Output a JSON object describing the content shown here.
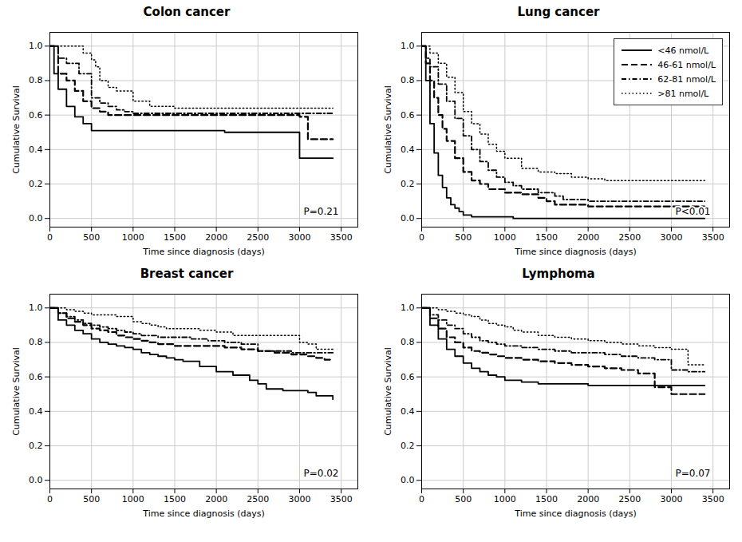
{
  "chart_data": [
    {
      "type": "line",
      "title": "Colon cancer",
      "x_label": "Time since diagnosis (days)",
      "y_label": "Cumulative Survival",
      "xlim": [
        0,
        3700
      ],
      "xticks": [
        0,
        500,
        1000,
        1500,
        2000,
        2500,
        3000,
        3500
      ],
      "ylim": [
        -0.05,
        1.08
      ],
      "yticks": [
        {
          "value": 0,
          "label": "0.0"
        },
        0.2,
        0.4,
        0.6,
        0.8,
        {
          "value": 1,
          "label": "1.0"
        }
      ],
      "grid": true,
      "annotations": [
        "P=0.21"
      ],
      "series": [
        {
          "color": "black",
          "line_style": "solid",
          "x": [
            0,
            50,
            100,
            200,
            300,
            400,
            500,
            600,
            700,
            800,
            900,
            1000,
            1200,
            1500,
            2000,
            2100,
            2200,
            2500,
            3000,
            3200,
            3400
          ],
          "values": [
            1.0,
            0.84,
            0.75,
            0.65,
            0.59,
            0.55,
            0.51,
            0.51,
            0.51,
            0.51,
            0.51,
            0.51,
            0.51,
            0.51,
            0.51,
            0.5,
            0.5,
            0.5,
            0.35,
            0.35,
            0.35
          ]
        },
        {
          "color": "black",
          "line_style": "dashed",
          "x": [
            0,
            100,
            200,
            300,
            400,
            500,
            600,
            700,
            800,
            900,
            1000,
            1100,
            1200,
            1500,
            2000,
            2500,
            2800,
            3000,
            3100,
            3200,
            3400
          ],
          "values": [
            1.0,
            0.84,
            0.8,
            0.74,
            0.68,
            0.64,
            0.62,
            0.6,
            0.6,
            0.6,
            0.6,
            0.6,
            0.6,
            0.6,
            0.6,
            0.6,
            0.6,
            0.59,
            0.46,
            0.46,
            0.46
          ]
        },
        {
          "color": "black",
          "line_style": "dashdot",
          "x": [
            0,
            100,
            200,
            350,
            500,
            600,
            700,
            800,
            900,
            1000,
            1100,
            1200,
            1500,
            1800,
            2000,
            2500,
            3000,
            3200,
            3400
          ],
          "values": [
            1.0,
            0.93,
            0.9,
            0.84,
            0.7,
            0.67,
            0.65,
            0.63,
            0.62,
            0.61,
            0.61,
            0.61,
            0.61,
            0.61,
            0.61,
            0.61,
            0.61,
            0.61,
            0.61
          ]
        },
        {
          "color": "black",
          "line_style": "dotted",
          "x": [
            0,
            100,
            200,
            300,
            400,
            500,
            550,
            600,
            700,
            800,
            1000,
            1200,
            1500,
            2000,
            2500,
            3000,
            3400
          ],
          "values": [
            1.0,
            1.0,
            1.0,
            1.0,
            0.96,
            0.92,
            0.88,
            0.8,
            0.76,
            0.74,
            0.68,
            0.65,
            0.64,
            0.64,
            0.64,
            0.64,
            0.64
          ]
        }
      ]
    },
    {
      "type": "line",
      "title": "Lung cancer",
      "x_label": "Time since diagnosis (days)",
      "y_label": "Cumulative Survival",
      "xlim": [
        0,
        3700
      ],
      "xticks": [
        0,
        500,
        1000,
        1500,
        2000,
        2500,
        3000,
        3500
      ],
      "ylim": [
        -0.05,
        1.08
      ],
      "yticks": [
        {
          "value": 0,
          "label": "0.0"
        },
        0.2,
        0.4,
        0.6,
        0.8,
        {
          "value": 1,
          "label": "1.0"
        }
      ],
      "grid": true,
      "legend": "upper right",
      "annotations": [
        "P<0.01"
      ],
      "series": [
        {
          "name": "<46 nmol/L",
          "color": "black",
          "line_style": "solid",
          "x": [
            0,
            50,
            100,
            150,
            200,
            250,
            300,
            350,
            400,
            450,
            500,
            600,
            700,
            800,
            900,
            1000,
            1100,
            1200,
            1500,
            2000,
            2500,
            3000,
            3400
          ],
          "values": [
            1.0,
            0.8,
            0.55,
            0.38,
            0.25,
            0.18,
            0.12,
            0.08,
            0.06,
            0.04,
            0.02,
            0.01,
            0.01,
            0.01,
            0.01,
            0.01,
            0.0,
            0.0,
            0.0,
            0.0,
            0.0,
            0.0,
            0.0
          ]
        },
        {
          "name": "46-61 nmol/L",
          "color": "black",
          "line_style": "dashed",
          "x": [
            0,
            50,
            100,
            150,
            200,
            250,
            300,
            400,
            500,
            600,
            700,
            800,
            1000,
            1200,
            1400,
            1500,
            1600,
            1800,
            2000,
            2200,
            2500,
            2800,
            3000,
            3400
          ],
          "values": [
            1.0,
            0.9,
            0.8,
            0.7,
            0.6,
            0.52,
            0.45,
            0.35,
            0.27,
            0.22,
            0.2,
            0.17,
            0.15,
            0.14,
            0.12,
            0.1,
            0.08,
            0.08,
            0.07,
            0.07,
            0.07,
            0.07,
            0.07,
            0.07
          ]
        },
        {
          "name": "62-81 nmol/L",
          "color": "black",
          "line_style": "dashdot",
          "x": [
            0,
            50,
            100,
            200,
            300,
            400,
            500,
            600,
            700,
            800,
            900,
            1000,
            1100,
            1200,
            1400,
            1600,
            1700,
            1800,
            2000,
            2500,
            3000,
            3200,
            3400
          ],
          "values": [
            1.0,
            0.93,
            0.88,
            0.78,
            0.68,
            0.58,
            0.48,
            0.4,
            0.33,
            0.28,
            0.24,
            0.21,
            0.19,
            0.17,
            0.15,
            0.13,
            0.11,
            0.11,
            0.1,
            0.1,
            0.1,
            0.1,
            0.1
          ]
        },
        {
          "name": ">81 nmol/L",
          "color": "black",
          "line_style": "dotted",
          "x": [
            0,
            100,
            200,
            300,
            400,
            500,
            600,
            700,
            800,
            900,
            1000,
            1200,
            1400,
            1600,
            1800,
            2000,
            2200,
            2500,
            2800,
            3000,
            3200,
            3400
          ],
          "values": [
            1.0,
            0.96,
            0.9,
            0.82,
            0.73,
            0.62,
            0.55,
            0.49,
            0.43,
            0.39,
            0.35,
            0.29,
            0.27,
            0.26,
            0.24,
            0.23,
            0.22,
            0.22,
            0.22,
            0.22,
            0.22,
            0.22
          ]
        }
      ]
    },
    {
      "type": "line",
      "title": "Breast cancer",
      "x_label": "Time since diagnosis (days)",
      "y_label": "Cumulative Survival",
      "xlim": [
        0,
        3700
      ],
      "xticks": [
        0,
        500,
        1000,
        1500,
        2000,
        2500,
        3000,
        3500
      ],
      "ylim": [
        -0.05,
        1.08
      ],
      "yticks": [
        {
          "value": 0,
          "label": "0.0"
        },
        0.2,
        0.4,
        0.6,
        0.8,
        {
          "value": 1,
          "label": "1.0"
        }
      ],
      "grid": true,
      "annotations": [
        "P=0.02"
      ],
      "series": [
        {
          "color": "black",
          "line_style": "solid",
          "x": [
            0,
            100,
            200,
            300,
            400,
            500,
            600,
            700,
            800,
            900,
            1000,
            1100,
            1200,
            1300,
            1400,
            1500,
            1600,
            1800,
            2000,
            2200,
            2400,
            2500,
            2600,
            2800,
            3000,
            3100,
            3200,
            3400
          ],
          "values": [
            1.0,
            0.93,
            0.9,
            0.87,
            0.85,
            0.82,
            0.8,
            0.79,
            0.78,
            0.77,
            0.76,
            0.74,
            0.73,
            0.72,
            0.71,
            0.7,
            0.69,
            0.66,
            0.63,
            0.61,
            0.58,
            0.56,
            0.53,
            0.52,
            0.52,
            0.51,
            0.49,
            0.47
          ]
        },
        {
          "color": "black",
          "line_style": "dashed",
          "x": [
            0,
            100,
            200,
            300,
            400,
            500,
            600,
            700,
            800,
            900,
            1000,
            1100,
            1200,
            1300,
            1500,
            1700,
            1900,
            2100,
            2300,
            2500,
            2700,
            2900,
            3100,
            3200,
            3300,
            3400
          ],
          "values": [
            1.0,
            0.97,
            0.94,
            0.92,
            0.9,
            0.88,
            0.87,
            0.86,
            0.84,
            0.83,
            0.82,
            0.81,
            0.8,
            0.79,
            0.78,
            0.78,
            0.78,
            0.77,
            0.76,
            0.75,
            0.74,
            0.73,
            0.72,
            0.71,
            0.7,
            0.7
          ]
        },
        {
          "color": "black",
          "line_style": "dashdot",
          "x": [
            0,
            100,
            200,
            300,
            400,
            500,
            600,
            700,
            800,
            900,
            1000,
            1100,
            1200,
            1300,
            1500,
            1700,
            1900,
            2100,
            2300,
            2500,
            2700,
            2900,
            3100,
            3200,
            3300,
            3400
          ],
          "values": [
            1.0,
            0.97,
            0.95,
            0.93,
            0.91,
            0.9,
            0.89,
            0.88,
            0.87,
            0.86,
            0.85,
            0.84,
            0.84,
            0.83,
            0.83,
            0.82,
            0.81,
            0.8,
            0.79,
            0.75,
            0.75,
            0.74,
            0.74,
            0.74,
            0.74,
            0.74
          ]
        },
        {
          "color": "black",
          "line_style": "dotted",
          "x": [
            0,
            100,
            200,
            300,
            400,
            500,
            600,
            700,
            800,
            900,
            1000,
            1100,
            1200,
            1300,
            1400,
            1600,
            1800,
            2000,
            2200,
            2400,
            2600,
            2700,
            2800,
            3000,
            3100,
            3200,
            3400
          ],
          "values": [
            1.0,
            1.0,
            0.99,
            0.98,
            0.97,
            0.96,
            0.96,
            0.96,
            0.95,
            0.95,
            0.92,
            0.91,
            0.9,
            0.89,
            0.88,
            0.88,
            0.87,
            0.86,
            0.84,
            0.84,
            0.84,
            0.84,
            0.84,
            0.8,
            0.79,
            0.76,
            0.75
          ]
        }
      ]
    },
    {
      "type": "line",
      "title": "Lymphoma",
      "x_label": "Time since diagnosis (days)",
      "y_label": "Cumulative Survival",
      "xlim": [
        0,
        3700
      ],
      "xticks": [
        0,
        500,
        1000,
        1500,
        2000,
        2500,
        3000,
        3500
      ],
      "ylim": [
        -0.05,
        1.08
      ],
      "yticks": [
        {
          "value": 0,
          "label": "0.0"
        },
        0.2,
        0.4,
        0.6,
        0.8,
        {
          "value": 1,
          "label": "1.0"
        }
      ],
      "grid": true,
      "annotations": [
        "P=0.07"
      ],
      "series": [
        {
          "color": "black",
          "line_style": "solid",
          "x": [
            0,
            100,
            200,
            300,
            400,
            500,
            600,
            700,
            800,
            900,
            1000,
            1200,
            1400,
            1600,
            1800,
            2000,
            2200,
            2400,
            2600,
            2800,
            3000,
            3200,
            3400
          ],
          "values": [
            1.0,
            0.9,
            0.82,
            0.76,
            0.72,
            0.68,
            0.65,
            0.63,
            0.61,
            0.6,
            0.58,
            0.57,
            0.56,
            0.56,
            0.56,
            0.55,
            0.55,
            0.55,
            0.55,
            0.55,
            0.55,
            0.55,
            0.55
          ]
        },
        {
          "color": "black",
          "line_style": "dashed",
          "x": [
            0,
            100,
            200,
            300,
            400,
            500,
            600,
            700,
            800,
            900,
            1000,
            1200,
            1400,
            1600,
            1800,
            2000,
            2200,
            2400,
            2600,
            2800,
            3000,
            3200,
            3400
          ],
          "values": [
            1.0,
            0.94,
            0.88,
            0.83,
            0.8,
            0.77,
            0.75,
            0.74,
            0.73,
            0.72,
            0.71,
            0.7,
            0.69,
            0.68,
            0.67,
            0.66,
            0.65,
            0.64,
            0.62,
            0.54,
            0.5,
            0.5,
            0.5
          ]
        },
        {
          "color": "black",
          "line_style": "dashdot",
          "x": [
            0,
            100,
            200,
            300,
            400,
            500,
            600,
            700,
            800,
            900,
            1000,
            1200,
            1400,
            1600,
            1800,
            2000,
            2200,
            2400,
            2600,
            2800,
            3000,
            3200,
            3400
          ],
          "values": [
            1.0,
            0.96,
            0.93,
            0.9,
            0.88,
            0.85,
            0.83,
            0.81,
            0.8,
            0.79,
            0.78,
            0.77,
            0.76,
            0.75,
            0.74,
            0.74,
            0.73,
            0.72,
            0.71,
            0.7,
            0.64,
            0.63,
            0.63
          ]
        },
        {
          "color": "black",
          "line_style": "dotted",
          "x": [
            0,
            100,
            200,
            300,
            400,
            500,
            600,
            700,
            800,
            900,
            1000,
            1100,
            1200,
            1400,
            1600,
            1800,
            2000,
            2200,
            2400,
            2600,
            2800,
            3000,
            3200,
            3400
          ],
          "values": [
            1.0,
            1.0,
            0.99,
            0.98,
            0.97,
            0.96,
            0.95,
            0.93,
            0.91,
            0.9,
            0.89,
            0.87,
            0.86,
            0.84,
            0.83,
            0.82,
            0.81,
            0.8,
            0.79,
            0.78,
            0.77,
            0.76,
            0.67,
            0.67
          ]
        }
      ]
    }
  ]
}
